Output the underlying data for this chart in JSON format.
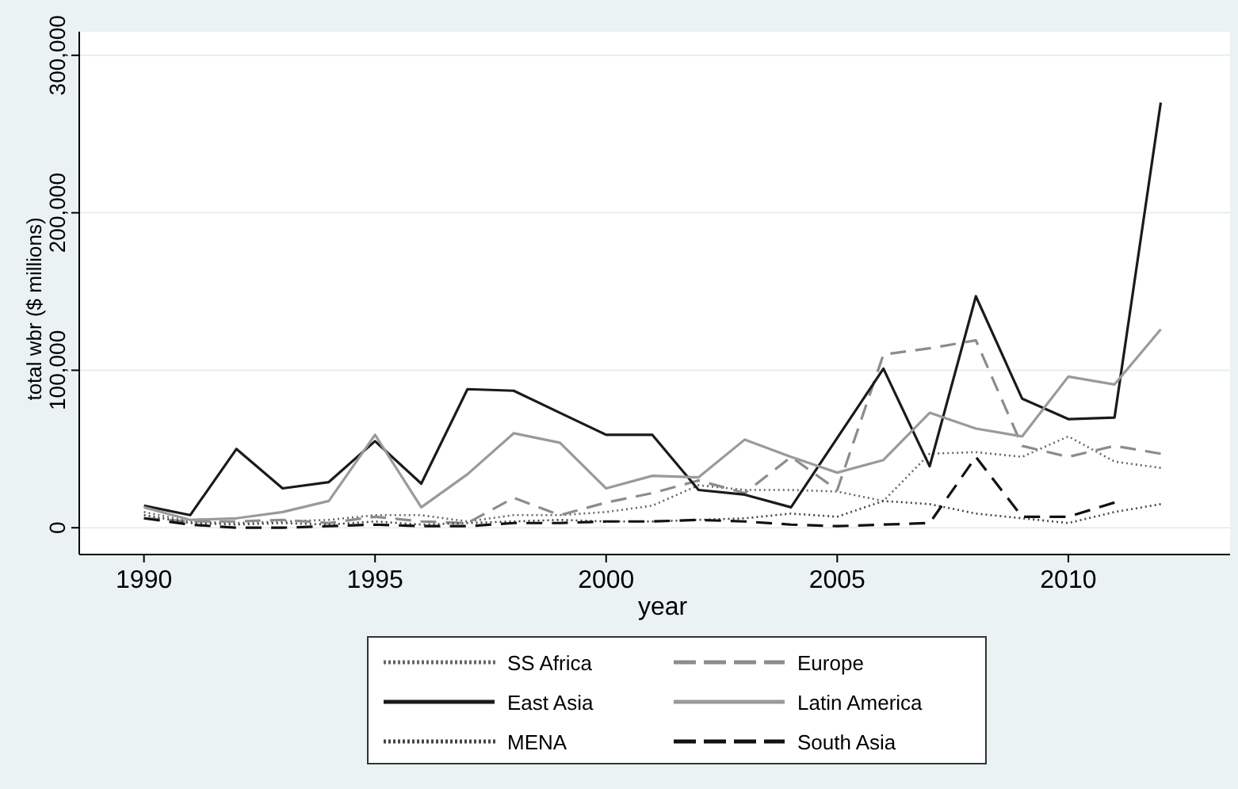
{
  "chart_data": {
    "type": "line",
    "xlabel": "year",
    "ylabel": "total wbr ($ millions)",
    "x": [
      1990,
      1991,
      1992,
      1993,
      1994,
      1995,
      1996,
      1997,
      1998,
      1999,
      2000,
      2001,
      2002,
      2003,
      2004,
      2005,
      2006,
      2007,
      2008,
      2009,
      2010,
      2011,
      2012
    ],
    "xlim": [
      1988.6,
      2013.5
    ],
    "xticks": [
      1990,
      1995,
      2000,
      2005,
      2010
    ],
    "ylim": [
      -17000,
      315000
    ],
    "yticks": [
      {
        "value": 0,
        "label": "0"
      },
      {
        "value": 100000,
        "label": "100,000"
      },
      {
        "value": 200000,
        "label": "200,000"
      },
      {
        "value": 300000,
        "label": "300,000"
      }
    ],
    "grid": "y",
    "legend": "bottom",
    "series": [
      {
        "name": "SS Africa",
        "color": "#666666",
        "line_style": "dotted",
        "values": [
          10000,
          4000,
          3000,
          4000,
          5000,
          8000,
          8000,
          4000,
          8000,
          8000,
          10000,
          14000,
          27000,
          24000,
          24000,
          23000,
          17000,
          47000,
          48000,
          45000,
          58000,
          42000,
          38000
        ]
      },
      {
        "name": "Europe",
        "color": "#8c8c8c",
        "line_style": "dashed",
        "values": [
          6000,
          4000,
          4000,
          5000,
          3000,
          7000,
          4000,
          3000,
          19000,
          8000,
          16000,
          22000,
          30000,
          22000,
          45000,
          24000,
          110000,
          114000,
          119000,
          52000,
          45000,
          52000,
          47000
        ]
      },
      {
        "name": "East Asia",
        "color": "#1a1a1a",
        "line_style": "solid",
        "values": [
          14000,
          8000,
          50000,
          25000,
          29000,
          55000,
          28000,
          88000,
          87000,
          73000,
          59000,
          59000,
          24000,
          21000,
          13000,
          57000,
          101000,
          39000,
          147000,
          82000,
          69000,
          70000,
          270000
        ]
      },
      {
        "name": "Latin America",
        "color": "#9a9a9a",
        "line_style": "solid",
        "values": [
          13000,
          5000,
          6000,
          10000,
          17000,
          59000,
          13000,
          34000,
          60000,
          54000,
          25000,
          33000,
          32000,
          56000,
          45000,
          35000,
          43000,
          73000,
          63000,
          58000,
          96000,
          91000,
          126000
        ]
      },
      {
        "name": "MENA",
        "color": "#444444",
        "line_style": "dotted",
        "values": [
          8000,
          3000,
          2000,
          3000,
          2000,
          4000,
          2000,
          3000,
          4000,
          5000,
          4000,
          4000,
          5000,
          6000,
          9000,
          7000,
          17000,
          15000,
          9000,
          6000,
          3000,
          10000,
          15000
        ]
      },
      {
        "name": "South Asia",
        "color": "#111111",
        "line_style": "dashed",
        "values": [
          6000,
          2000,
          0,
          0,
          1000,
          2000,
          1000,
          1000,
          3000,
          3000,
          4000,
          4000,
          5000,
          4000,
          2000,
          1000,
          2000,
          3000,
          45000,
          7000,
          7000,
          16000,
          null
        ]
      }
    ]
  }
}
